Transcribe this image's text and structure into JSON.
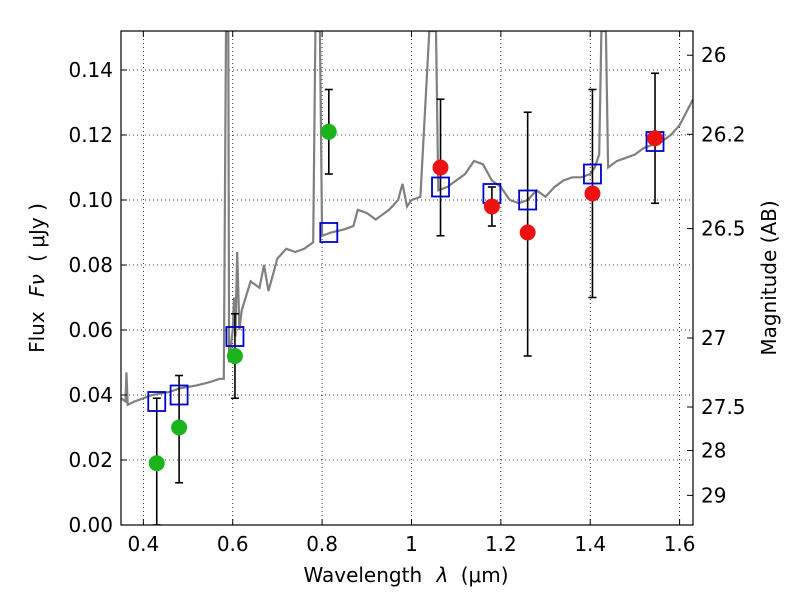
{
  "chart_data": {
    "type": "scatter",
    "xlabel_prefix": "Wavelength",
    "xlabel_symbol": "λ",
    "xlabel_unit": "(μm)",
    "ylabel_prefix": "Flux",
    "ylabel_symbol": "Fν",
    "ylabel_unit": "( μJy )",
    "right_ylabel": "Magnitude (AB)",
    "xlim": [
      0.35,
      1.63
    ],
    "ylim": [
      0.0,
      0.152
    ],
    "grid": true,
    "x_ticks": [
      {
        "value": 0.4,
        "label": "0.4"
      },
      {
        "value": 0.6,
        "label": "0.6"
      },
      {
        "value": 0.8,
        "label": "0.8"
      },
      {
        "value": 1.0,
        "label": "1"
      },
      {
        "value": 1.2,
        "label": "1.2"
      },
      {
        "value": 1.4,
        "label": "1.4"
      },
      {
        "value": 1.6,
        "label": "1.6"
      }
    ],
    "y_ticks": [
      {
        "value": 0.0,
        "label": "0.00"
      },
      {
        "value": 0.02,
        "label": "0.02"
      },
      {
        "value": 0.04,
        "label": "0.04"
      },
      {
        "value": 0.06,
        "label": "0.06"
      },
      {
        "value": 0.08,
        "label": "0.08"
      },
      {
        "value": 0.1,
        "label": "0.10"
      },
      {
        "value": 0.12,
        "label": "0.12"
      },
      {
        "value": 0.14,
        "label": "0.14"
      }
    ],
    "right_ticks": [
      {
        "value": 26,
        "label": "26"
      },
      {
        "value": 26.2,
        "label": "26.2"
      },
      {
        "value": 26.5,
        "label": "26.5"
      },
      {
        "value": 27,
        "label": "27"
      },
      {
        "value": 27.5,
        "label": "27.5"
      },
      {
        "value": 28,
        "label": "28"
      },
      {
        "value": 29,
        "label": "29"
      }
    ],
    "colors": {
      "model": "#808080",
      "green": "#1cb41c",
      "red": "#ee1111",
      "box": "#0000cc",
      "errorbar": "#000000"
    },
    "series": [
      {
        "name": "model spectrum",
        "kind": "line",
        "points": [
          [
            0.35,
            0.039
          ],
          [
            0.36,
            0.038
          ],
          [
            0.362,
            0.047
          ],
          [
            0.365,
            0.037
          ],
          [
            0.38,
            0.038
          ],
          [
            0.4,
            0.039
          ],
          [
            0.42,
            0.04
          ],
          [
            0.44,
            0.0405
          ],
          [
            0.46,
            0.041
          ],
          [
            0.48,
            0.042
          ],
          [
            0.5,
            0.0425
          ],
          [
            0.52,
            0.043
          ],
          [
            0.55,
            0.044
          ],
          [
            0.57,
            0.045
          ],
          [
            0.58,
            0.045
          ],
          [
            0.585,
            0.152
          ],
          [
            0.59,
            0.152
          ],
          [
            0.592,
            0.05
          ],
          [
            0.6,
            0.06
          ],
          [
            0.603,
            0.07
          ],
          [
            0.606,
            0.058
          ],
          [
            0.61,
            0.084
          ],
          [
            0.615,
            0.06
          ],
          [
            0.62,
            0.066
          ],
          [
            0.64,
            0.075
          ],
          [
            0.66,
            0.073
          ],
          [
            0.67,
            0.08
          ],
          [
            0.68,
            0.072
          ],
          [
            0.7,
            0.082
          ],
          [
            0.72,
            0.085
          ],
          [
            0.74,
            0.084
          ],
          [
            0.76,
            0.085
          ],
          [
            0.78,
            0.087
          ],
          [
            0.785,
            0.152
          ],
          [
            0.795,
            0.152
          ],
          [
            0.8,
            0.089
          ],
          [
            0.82,
            0.09
          ],
          [
            0.85,
            0.091
          ],
          [
            0.87,
            0.092
          ],
          [
            0.88,
            0.097
          ],
          [
            0.9,
            0.096
          ],
          [
            0.92,
            0.094
          ],
          [
            0.95,
            0.097
          ],
          [
            0.97,
            0.1
          ],
          [
            0.98,
            0.105
          ],
          [
            0.99,
            0.098
          ],
          [
            1.0,
            0.1
          ],
          [
            1.02,
            0.101
          ],
          [
            1.04,
            0.152
          ],
          [
            1.055,
            0.152
          ],
          [
            1.06,
            0.103
          ],
          [
            1.08,
            0.104
          ],
          [
            1.1,
            0.106
          ],
          [
            1.12,
            0.108
          ],
          [
            1.14,
            0.112
          ],
          [
            1.16,
            0.111
          ],
          [
            1.18,
            0.106
          ],
          [
            1.2,
            0.104
          ],
          [
            1.22,
            0.1
          ],
          [
            1.24,
            0.099
          ],
          [
            1.26,
            0.1
          ],
          [
            1.28,
            0.103
          ],
          [
            1.3,
            0.101
          ],
          [
            1.32,
            0.104
          ],
          [
            1.34,
            0.106
          ],
          [
            1.36,
            0.107
          ],
          [
            1.38,
            0.107
          ],
          [
            1.4,
            0.108
          ],
          [
            1.41,
            0.11
          ],
          [
            1.42,
            0.114
          ],
          [
            1.425,
            0.152
          ],
          [
            1.435,
            0.152
          ],
          [
            1.44,
            0.11
          ],
          [
            1.46,
            0.112
          ],
          [
            1.48,
            0.113
          ],
          [
            1.5,
            0.114
          ],
          [
            1.52,
            0.116
          ],
          [
            1.54,
            0.117
          ],
          [
            1.56,
            0.118
          ],
          [
            1.58,
            0.12
          ],
          [
            1.6,
            0.123
          ],
          [
            1.63,
            0.131
          ]
        ]
      },
      {
        "name": "green points",
        "kind": "points",
        "points": [
          {
            "x": 0.43,
            "y": 0.019,
            "lo": 0.0,
            "hi": 0.039
          },
          {
            "x": 0.48,
            "y": 0.03,
            "lo": 0.013,
            "hi": 0.046
          },
          {
            "x": 0.605,
            "y": 0.052,
            "lo": 0.039,
            "hi": 0.065
          },
          {
            "x": 0.815,
            "y": 0.121,
            "lo": 0.108,
            "hi": 0.134
          }
        ]
      },
      {
        "name": "red points",
        "kind": "points",
        "points": [
          {
            "x": 1.065,
            "y": 0.11,
            "lo": 0.089,
            "hi": 0.131
          },
          {
            "x": 1.18,
            "y": 0.098,
            "lo": 0.092,
            "hi": 0.104
          },
          {
            "x": 1.26,
            "y": 0.09,
            "lo": 0.052,
            "hi": 0.127
          },
          {
            "x": 1.405,
            "y": 0.102,
            "lo": 0.07,
            "hi": 0.134
          },
          {
            "x": 1.545,
            "y": 0.119,
            "lo": 0.099,
            "hi": 0.139
          }
        ]
      },
      {
        "name": "model boxes",
        "kind": "boxes",
        "points": [
          {
            "x": 0.43,
            "y": 0.038
          },
          {
            "x": 0.48,
            "y": 0.04
          },
          {
            "x": 0.605,
            "y": 0.058
          },
          {
            "x": 0.815,
            "y": 0.09
          },
          {
            "x": 1.065,
            "y": 0.104
          },
          {
            "x": 1.18,
            "y": 0.102
          },
          {
            "x": 1.26,
            "y": 0.1
          },
          {
            "x": 1.405,
            "y": 0.108
          },
          {
            "x": 1.545,
            "y": 0.118
          }
        ]
      }
    ]
  }
}
